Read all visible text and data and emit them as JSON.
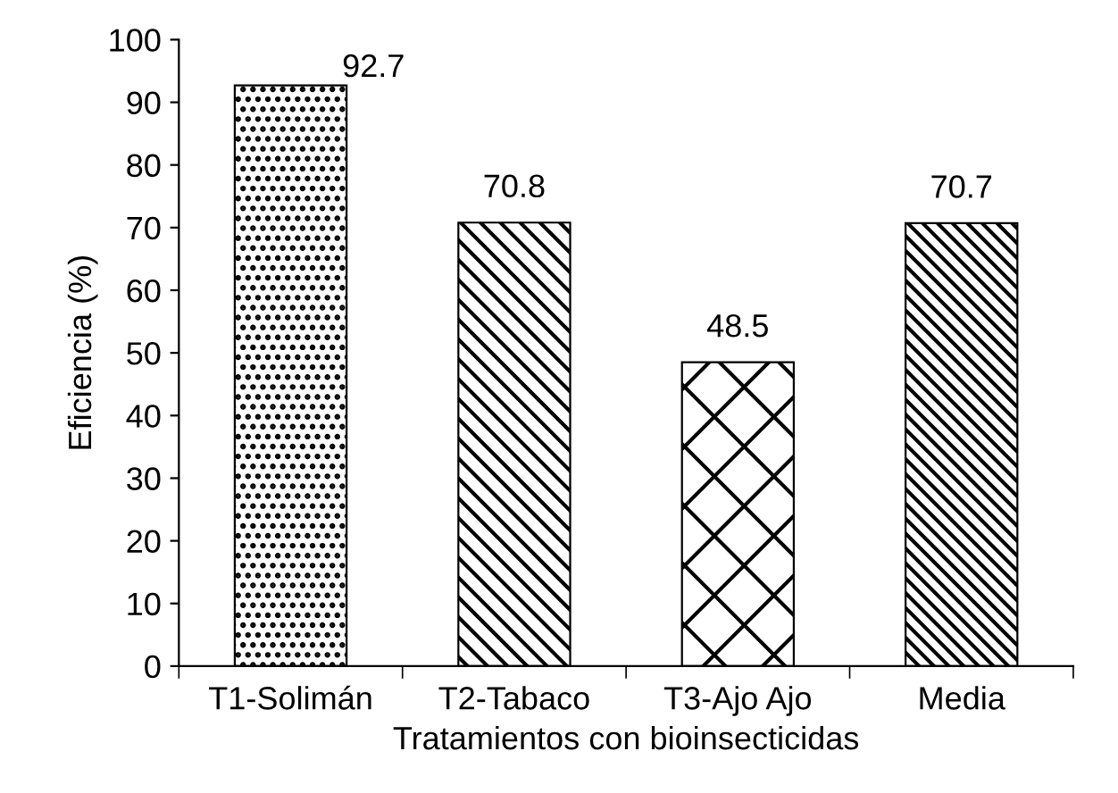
{
  "chart_data": {
    "type": "bar",
    "xlabel": "Tratamientos con bioinsecticidas",
    "ylabel": "Eficiencia (%)",
    "categories": [
      "T1-Solimán",
      "T2-Tabaco",
      "T3-Ajo Ajo",
      "Media"
    ],
    "values": [
      92.7,
      70.8,
      48.5,
      70.7
    ],
    "color": "#000000",
    "ylim": [
      0,
      100
    ],
    "yticks": [
      0,
      10,
      20,
      30,
      40,
      50,
      60,
      70,
      80,
      90,
      100
    ],
    "data_labels": true,
    "grid": false,
    "legend": false
  }
}
